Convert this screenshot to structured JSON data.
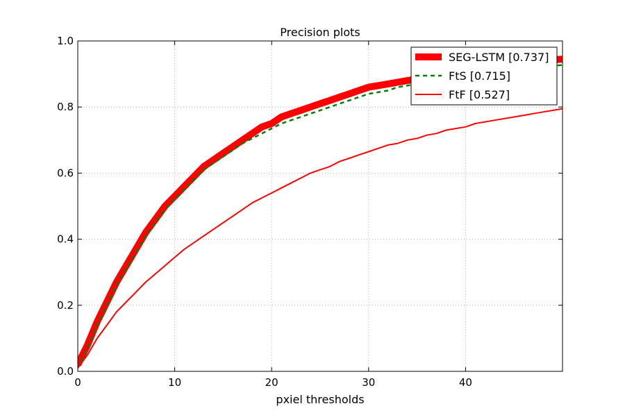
{
  "chart_data": {
    "type": "line",
    "title": "Precision plots",
    "xlabel": "pxiel thresholds",
    "ylabel": "",
    "xlim": [
      0,
      50
    ],
    "ylim": [
      0,
      1.0
    ],
    "grid": true,
    "legend_position": "top-right",
    "x_ticks": [
      "0",
      "10",
      "20",
      "30",
      "40"
    ],
    "y_ticks": [
      "0.0",
      "0.2",
      "0.4",
      "0.6",
      "0.8",
      "1.0"
    ],
    "x": [
      0,
      1,
      2,
      3,
      4,
      5,
      6,
      7,
      8,
      9,
      10,
      11,
      12,
      13,
      14,
      15,
      16,
      17,
      18,
      19,
      20,
      21,
      22,
      23,
      24,
      25,
      26,
      27,
      28,
      29,
      30,
      31,
      32,
      33,
      34,
      35,
      36,
      37,
      38,
      39,
      40,
      41,
      42,
      43,
      44,
      45,
      46,
      47,
      48,
      49,
      50
    ],
    "series": [
      {
        "name": "SEG-LSTM [0.737]",
        "color": "#ff0000",
        "style": "solid-thick",
        "values": [
          0.02,
          0.08,
          0.15,
          0.21,
          0.27,
          0.32,
          0.37,
          0.42,
          0.46,
          0.5,
          0.53,
          0.56,
          0.59,
          0.62,
          0.64,
          0.66,
          0.68,
          0.7,
          0.72,
          0.74,
          0.75,
          0.77,
          0.78,
          0.79,
          0.8,
          0.81,
          0.82,
          0.83,
          0.84,
          0.85,
          0.86,
          0.865,
          0.87,
          0.875,
          0.88,
          0.885,
          0.89,
          0.895,
          0.9,
          0.905,
          0.91,
          0.915,
          0.92,
          0.925,
          0.93,
          0.932,
          0.935,
          0.938,
          0.94,
          0.943,
          0.945
        ]
      },
      {
        "name": "FtS [0.715]",
        "color": "#007f00",
        "style": "dashed",
        "values": [
          0.01,
          0.07,
          0.14,
          0.2,
          0.26,
          0.31,
          0.36,
          0.41,
          0.45,
          0.49,
          0.52,
          0.55,
          0.58,
          0.61,
          0.63,
          0.65,
          0.67,
          0.69,
          0.705,
          0.72,
          0.735,
          0.75,
          0.76,
          0.77,
          0.78,
          0.79,
          0.8,
          0.81,
          0.82,
          0.83,
          0.84,
          0.845,
          0.85,
          0.86,
          0.865,
          0.87,
          0.875,
          0.88,
          0.885,
          0.89,
          0.895,
          0.9,
          0.905,
          0.91,
          0.912,
          0.915,
          0.918,
          0.92,
          0.922,
          0.925,
          0.927
        ]
      },
      {
        "name": "FtF [0.527]",
        "color": "#ff0000",
        "style": "solid",
        "values": [
          0.01,
          0.05,
          0.1,
          0.14,
          0.18,
          0.21,
          0.24,
          0.27,
          0.295,
          0.32,
          0.345,
          0.37,
          0.39,
          0.41,
          0.43,
          0.45,
          0.47,
          0.49,
          0.51,
          0.525,
          0.54,
          0.555,
          0.57,
          0.585,
          0.6,
          0.61,
          0.62,
          0.635,
          0.645,
          0.655,
          0.665,
          0.675,
          0.685,
          0.69,
          0.7,
          0.705,
          0.715,
          0.72,
          0.73,
          0.735,
          0.74,
          0.75,
          0.755,
          0.76,
          0.765,
          0.77,
          0.775,
          0.78,
          0.785,
          0.79,
          0.795
        ]
      }
    ]
  }
}
